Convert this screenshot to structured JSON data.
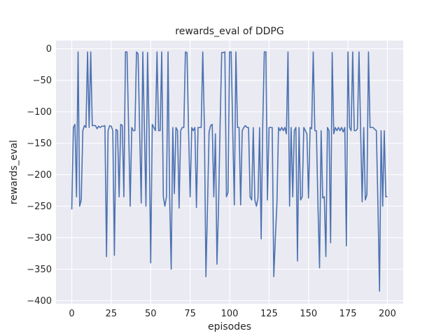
{
  "chart_data": {
    "type": "line",
    "title": "rewards_eval of DDPG",
    "xlabel": "episodes",
    "ylabel": "rewards_eval",
    "xlim": [
      -10,
      210
    ],
    "ylim": [
      -405,
      13
    ],
    "xticks": [
      "0",
      "25",
      "50",
      "75",
      "100",
      "125",
      "150",
      "175",
      "200"
    ],
    "yticks": [
      "0",
      "−50",
      "−100",
      "−150",
      "−200",
      "−250",
      "−300",
      "−350",
      "−400"
    ],
    "grid": true,
    "colors": {
      "line": "#4c72b0",
      "background": "#eaeaf2",
      "grid": "#ffffff"
    },
    "series": [
      {
        "values": [
          -255,
          -125,
          -120,
          -235,
          -5,
          -250,
          -240,
          -130,
          -122,
          -125,
          -5,
          -125,
          -5,
          -122,
          -122,
          -122,
          -127,
          -123,
          -125,
          -123,
          -123,
          -122,
          -330,
          -130,
          -122,
          -123,
          -130,
          -328,
          -128,
          -130,
          -235,
          -120,
          -122,
          -235,
          -5,
          -5,
          -125,
          -250,
          -125,
          -130,
          -130,
          -5,
          -8,
          -130,
          -245,
          -5,
          -125,
          -250,
          -6,
          -130,
          -340,
          -120,
          -125,
          -130,
          -5,
          -130,
          -130,
          -5,
          -235,
          -250,
          -235,
          -5,
          -235,
          -350,
          -125,
          -230,
          -125,
          -130,
          -253,
          -130,
          -125,
          -125,
          -5,
          -6,
          -130,
          -235,
          -125,
          -130,
          -125,
          -252,
          -125,
          -125,
          -125,
          -5,
          -120,
          -362,
          -250,
          -132,
          -122,
          -120,
          -235,
          -135,
          -342,
          -250,
          -120,
          -6,
          -6,
          -5,
          -235,
          -228,
          -5,
          -5,
          -130,
          -248,
          -5,
          -125,
          -125,
          -248,
          -130,
          -125,
          -122,
          -125,
          -125,
          -235,
          -240,
          -125,
          -240,
          -250,
          -237,
          -125,
          -302,
          -120,
          -5,
          -5,
          -240,
          -125,
          -125,
          -125,
          -362,
          -300,
          -245,
          -125,
          -130,
          -125,
          -130,
          -125,
          -135,
          -5,
          -250,
          -125,
          -235,
          -130,
          -125,
          -337,
          -125,
          -240,
          -235,
          -125,
          -130,
          -135,
          -237,
          -125,
          -127,
          -5,
          -130,
          -130,
          -250,
          -348,
          -130,
          -237,
          -235,
          -330,
          -125,
          -130,
          -308,
          -6,
          -135,
          -125,
          -130,
          -125,
          -130,
          -125,
          -132,
          -125,
          -313,
          -5,
          -125,
          -130,
          -5,
          -130,
          -130,
          -127,
          -5,
          -127,
          -243,
          -125,
          -240,
          -232,
          -5,
          -125,
          -125,
          -125,
          -128,
          -130,
          -250,
          -385,
          -130,
          -250,
          -130,
          -235,
          -235
        ]
      }
    ]
  }
}
